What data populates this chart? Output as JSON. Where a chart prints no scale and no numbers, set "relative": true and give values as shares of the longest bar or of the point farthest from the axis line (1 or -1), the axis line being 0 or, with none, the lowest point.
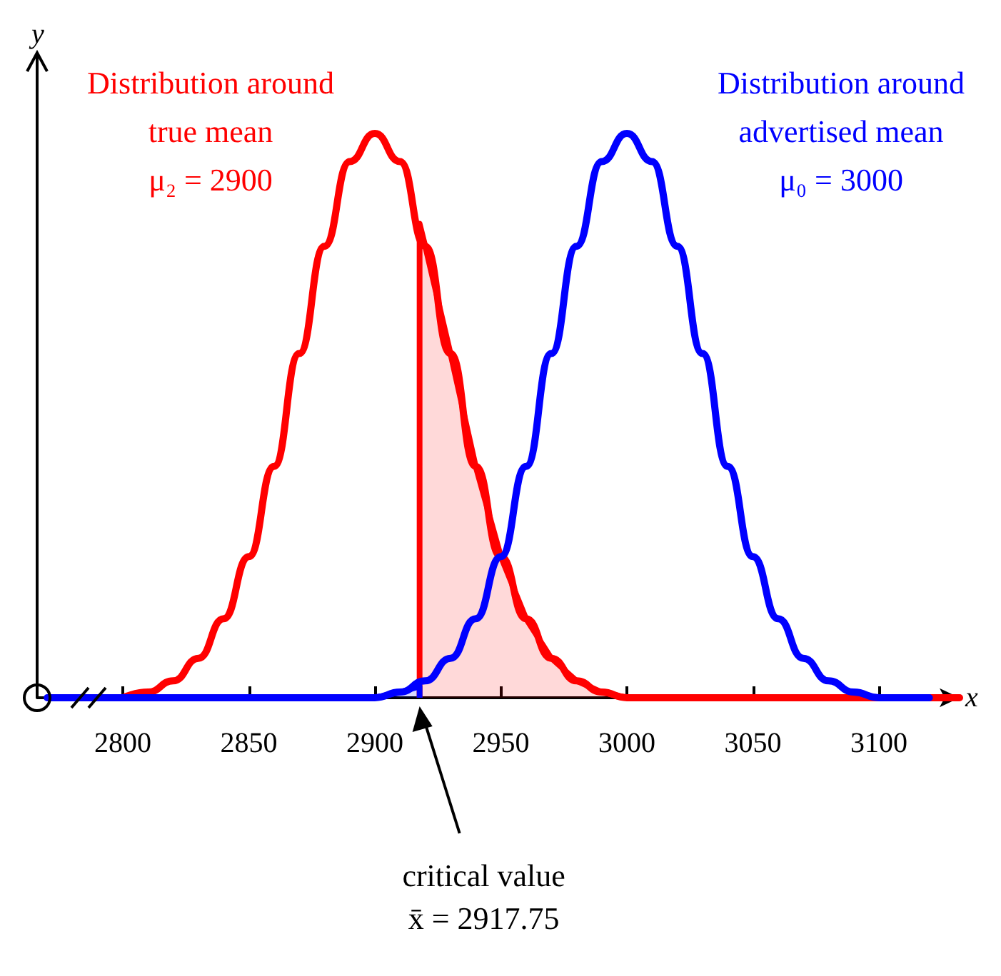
{
  "chart_data": {
    "type": "line",
    "relative": true,
    "xlabel": "x",
    "ylabel": "y",
    "xlim": [
      2766,
      3132
    ],
    "xticks": [
      2800,
      2850,
      2900,
      2950,
      3000,
      3050,
      3100
    ],
    "legend": false,
    "grid": false,
    "marker": "none",
    "line_style": "solid",
    "series": [
      {
        "name": "Distribution around\ntrue mean\nμ₂ = 2900",
        "color": "#ff0000",
        "x": [
          2800,
          2810,
          2820,
          2830,
          2840,
          2850,
          2860,
          2870,
          2880,
          2890,
          2900,
          2910,
          2920,
          2930,
          2940,
          2950,
          2960,
          2970,
          2980,
          2990,
          3000,
          3010,
          3050,
          3100,
          3132
        ],
        "values": [
          0,
          0.01,
          0.03,
          0.07,
          0.14,
          0.25,
          0.41,
          0.61,
          0.8,
          0.95,
          1,
          0.95,
          0.8,
          0.61,
          0.41,
          0.25,
          0.14,
          0.07,
          0.03,
          0.01,
          0,
          0,
          0,
          0,
          0
        ]
      },
      {
        "name": "Distribution around\nadvertised mean\nμ₀ = 3000",
        "color": "#0000ff",
        "x": [
          2770,
          2880,
          2890,
          2900,
          2910,
          2920,
          2930,
          2940,
          2950,
          2960,
          2970,
          2980,
          2990,
          3000,
          3010,
          3020,
          3030,
          3040,
          3050,
          3060,
          3070,
          3080,
          3090,
          3100,
          3110,
          3120
        ],
        "values": [
          0,
          0,
          0,
          0,
          0.01,
          0.03,
          0.07,
          0.14,
          0.25,
          0.41,
          0.61,
          0.8,
          0.95,
          1,
          0.95,
          0.8,
          0.61,
          0.41,
          0.25,
          0.14,
          0.07,
          0.03,
          0.01,
          0,
          0,
          0
        ]
      },
      {
        "type": "area",
        "color": "#ff0000",
        "x": [
          2917.75,
          2917.75,
          2920,
          2930,
          2940,
          2950,
          2960,
          2970,
          2980,
          2990,
          3000,
          3010
        ],
        "values": [
          0,
          0.84,
          0.8,
          0.61,
          0.41,
          0.25,
          0.14,
          0.07,
          0.03,
          0.01,
          0,
          0
        ]
      },
      {
        "type": "area",
        "color": "#0000ff",
        "x": [
          2900,
          2910,
          2917.75,
          2917.75
        ],
        "values": [
          0,
          0.01,
          0.02,
          0
        ]
      }
    ],
    "annotations": [
      "critical value\nx̄ = 2917.75"
    ]
  }
}
